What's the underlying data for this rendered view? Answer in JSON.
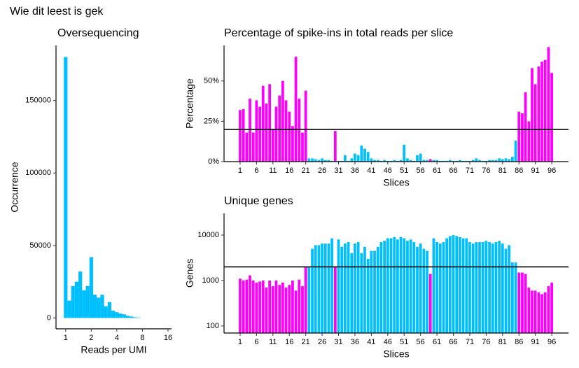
{
  "title": "Wie dit leest is gek",
  "chart_data": [
    {
      "type": "histogram",
      "title": "Oversequencing",
      "x_label": "Reads per UMI",
      "y_label": "Occurrence",
      "color": "#00bfff",
      "bins": [
        0.952,
        1.051,
        1.161,
        1.281,
        1.415,
        1.562,
        1.725,
        1.904,
        2.102,
        2.321,
        2.563,
        2.83,
        3.124,
        3.449,
        3.808,
        4.205,
        4.643,
        5.126,
        5.66,
        6.249,
        6.899,
        7.618
      ],
      "values": [
        180000,
        12000,
        22000,
        25000,
        32000,
        19000,
        22000,
        42000,
        16000,
        14000,
        16000,
        8000,
        11000,
        5000,
        4000,
        3000,
        2500,
        1500,
        1000,
        500,
        300
      ],
      "xlim": [
        0.77,
        17.6
      ],
      "x_log": true,
      "xticks": [
        1,
        2,
        4,
        8,
        16
      ],
      "ylim": [
        -7500,
        188000
      ],
      "yticks": [
        0,
        50000,
        100000,
        150000
      ]
    },
    {
      "type": "bar",
      "title": "Percentage of spike-ins in total reads per slice",
      "x_label": "Slices",
      "y_label": "Percentage",
      "x": [
        1,
        2,
        3,
        4,
        5,
        6,
        7,
        8,
        9,
        10,
        11,
        12,
        13,
        14,
        15,
        16,
        17,
        18,
        19,
        20,
        21,
        22,
        23,
        24,
        25,
        26,
        27,
        28,
        29,
        30,
        31,
        32,
        33,
        34,
        35,
        36,
        37,
        38,
        39,
        40,
        41,
        42,
        43,
        44,
        45,
        46,
        47,
        48,
        49,
        50,
        51,
        52,
        53,
        54,
        55,
        56,
        57,
        58,
        59,
        60,
        61,
        62,
        63,
        64,
        65,
        66,
        67,
        68,
        69,
        70,
        71,
        72,
        73,
        74,
        75,
        76,
        77,
        78,
        79,
        80,
        81,
        82,
        83,
        84,
        85,
        86,
        87,
        88,
        89,
        90,
        91,
        92,
        93,
        94,
        95,
        96
      ],
      "values": [
        32,
        32.5,
        18,
        39,
        18,
        38,
        34,
        47,
        36,
        48,
        20,
        34,
        41,
        50,
        38,
        31,
        22,
        65,
        39,
        18,
        44,
        2,
        2,
        1.5,
        1,
        2,
        1,
        1,
        0.5,
        19,
        0.5,
        0.5,
        4,
        0.5,
        2,
        5,
        4,
        10,
        8,
        6,
        2,
        1,
        1,
        0.5,
        1,
        0.5,
        0.5,
        1,
        0.5,
        1,
        10.5,
        2,
        1,
        0.5,
        4,
        5,
        1,
        1,
        1.5,
        1,
        1,
        0.5,
        0.5,
        0.5,
        1,
        0.5,
        0.5,
        1,
        0.5,
        0.5,
        0.5,
        1,
        2,
        1,
        0.5,
        0.5,
        1,
        1,
        1,
        2,
        1.5,
        2,
        1.5,
        3,
        13,
        31,
        30,
        43,
        25,
        58,
        48,
        59,
        62,
        63,
        71,
        55
      ],
      "colors": [
        "#ff00ff",
        "#ff00ff",
        "#ff00ff",
        "#ff00ff",
        "#ff00ff",
        "#ff00ff",
        "#ff00ff",
        "#ff00ff",
        "#ff00ff",
        "#ff00ff",
        "#ff00ff",
        "#ff00ff",
        "#ff00ff",
        "#ff00ff",
        "#ff00ff",
        "#ff00ff",
        "#ff00ff",
        "#ff00ff",
        "#ff00ff",
        "#ff00ff",
        "#ff00ff",
        "#00bfff",
        "#00bfff",
        "#00bfff",
        "#00bfff",
        "#00bfff",
        "#00bfff",
        "#00bfff",
        "#00bfff",
        "#ff00ff",
        "#00bfff",
        "#00bfff",
        "#00bfff",
        "#00bfff",
        "#00bfff",
        "#00bfff",
        "#00bfff",
        "#00bfff",
        "#00bfff",
        "#00bfff",
        "#00bfff",
        "#00bfff",
        "#00bfff",
        "#00bfff",
        "#00bfff",
        "#00bfff",
        "#00bfff",
        "#00bfff",
        "#00bfff",
        "#00bfff",
        "#00bfff",
        "#00bfff",
        "#00bfff",
        "#00bfff",
        "#00bfff",
        "#00bfff",
        "#00bfff",
        "#00bfff",
        "#ff00ff",
        "#00bfff",
        "#00bfff",
        "#00bfff",
        "#00bfff",
        "#00bfff",
        "#00bfff",
        "#00bfff",
        "#00bfff",
        "#00bfff",
        "#00bfff",
        "#00bfff",
        "#00bfff",
        "#00bfff",
        "#00bfff",
        "#00bfff",
        "#00bfff",
        "#00bfff",
        "#00bfff",
        "#00bfff",
        "#00bfff",
        "#00bfff",
        "#00bfff",
        "#00bfff",
        "#00bfff",
        "#00bfff",
        "#00bfff",
        "#ff00ff",
        "#ff00ff",
        "#ff00ff",
        "#ff00ff",
        "#ff00ff",
        "#ff00ff",
        "#ff00ff",
        "#ff00ff",
        "#ff00ff",
        "#ff00ff",
        "#ff00ff"
      ],
      "xlim": [
        -3.9,
        101.1
      ],
      "xticks": [
        1,
        6,
        11,
        16,
        21,
        26,
        31,
        36,
        41,
        46,
        51,
        56,
        61,
        66,
        71,
        76,
        81,
        86,
        91,
        96
      ],
      "ylim": [
        0,
        72
      ],
      "yticks": [
        {
          "value": 0,
          "label": "0%"
        },
        {
          "value": 25,
          "label": "25%"
        },
        {
          "value": 50,
          "label": "50%"
        }
      ],
      "hline": 20
    },
    {
      "type": "bar",
      "title": "Unique genes",
      "x_label": "Slices",
      "y_label": "Genes",
      "x": [
        1,
        2,
        3,
        4,
        5,
        6,
        7,
        8,
        9,
        10,
        11,
        12,
        13,
        14,
        15,
        16,
        17,
        18,
        19,
        20,
        21,
        22,
        23,
        24,
        25,
        26,
        27,
        28,
        29,
        30,
        31,
        32,
        33,
        34,
        35,
        36,
        37,
        38,
        39,
        40,
        41,
        42,
        43,
        44,
        45,
        46,
        47,
        48,
        49,
        50,
        51,
        52,
        53,
        54,
        55,
        56,
        57,
        58,
        59,
        60,
        61,
        62,
        63,
        64,
        65,
        66,
        67,
        68,
        69,
        70,
        71,
        72,
        73,
        74,
        75,
        76,
        77,
        78,
        79,
        80,
        81,
        82,
        83,
        84,
        85,
        86,
        87,
        88,
        89,
        90,
        91,
        92,
        93,
        94,
        95,
        96
      ],
      "values": [
        1100,
        1000,
        1050,
        1300,
        1000,
        900,
        950,
        1000,
        700,
        1000,
        750,
        1000,
        800,
        900,
        700,
        800,
        1000,
        600,
        1050,
        750,
        2000,
        2000,
        5000,
        6000,
        6000,
        6500,
        6500,
        6500,
        8500,
        2000,
        8000,
        5500,
        6500,
        7000,
        4000,
        6500,
        7000,
        4000,
        5500,
        3000,
        4500,
        4500,
        5500,
        7000,
        7500,
        8500,
        8500,
        9000,
        8000,
        9000,
        8500,
        7500,
        8000,
        7000,
        5500,
        6500,
        5000,
        4500,
        1400,
        8500,
        7000,
        6500,
        7000,
        8500,
        9500,
        10000,
        9500,
        9000,
        8500,
        8500,
        7000,
        6500,
        7000,
        7000,
        7000,
        7500,
        7000,
        6500,
        7000,
        7500,
        6500,
        5000,
        6000,
        2500,
        2500,
        1500,
        1500,
        1400,
        700,
        600,
        600,
        550,
        500,
        550,
        750,
        900
      ],
      "colors": [
        "#ff00ff",
        "#ff00ff",
        "#ff00ff",
        "#ff00ff",
        "#ff00ff",
        "#ff00ff",
        "#ff00ff",
        "#ff00ff",
        "#ff00ff",
        "#ff00ff",
        "#ff00ff",
        "#ff00ff",
        "#ff00ff",
        "#ff00ff",
        "#ff00ff",
        "#ff00ff",
        "#ff00ff",
        "#ff00ff",
        "#ff00ff",
        "#ff00ff",
        "#ff00ff",
        "#00bfff",
        "#00bfff",
        "#00bfff",
        "#00bfff",
        "#00bfff",
        "#00bfff",
        "#00bfff",
        "#00bfff",
        "#ff00ff",
        "#00bfff",
        "#00bfff",
        "#00bfff",
        "#00bfff",
        "#00bfff",
        "#00bfff",
        "#00bfff",
        "#00bfff",
        "#00bfff",
        "#00bfff",
        "#00bfff",
        "#00bfff",
        "#00bfff",
        "#00bfff",
        "#00bfff",
        "#00bfff",
        "#00bfff",
        "#00bfff",
        "#00bfff",
        "#00bfff",
        "#00bfff",
        "#00bfff",
        "#00bfff",
        "#00bfff",
        "#00bfff",
        "#00bfff",
        "#00bfff",
        "#00bfff",
        "#ff00ff",
        "#00bfff",
        "#00bfff",
        "#00bfff",
        "#00bfff",
        "#00bfff",
        "#00bfff",
        "#00bfff",
        "#00bfff",
        "#00bfff",
        "#00bfff",
        "#00bfff",
        "#00bfff",
        "#00bfff",
        "#00bfff",
        "#00bfff",
        "#00bfff",
        "#00bfff",
        "#00bfff",
        "#00bfff",
        "#00bfff",
        "#00bfff",
        "#00bfff",
        "#00bfff",
        "#00bfff",
        "#00bfff",
        "#00bfff",
        "#ff00ff",
        "#ff00ff",
        "#ff00ff",
        "#ff00ff",
        "#ff00ff",
        "#ff00ff",
        "#ff00ff",
        "#ff00ff",
        "#ff00ff",
        "#ff00ff",
        "#ff00ff"
      ],
      "xlim": [
        -3.9,
        101.1
      ],
      "xticks": [
        1,
        6,
        11,
        16,
        21,
        26,
        31,
        36,
        41,
        46,
        51,
        56,
        61,
        66,
        71,
        76,
        81,
        86,
        91,
        96
      ],
      "ylim": [
        70,
        30000
      ],
      "y_log": true,
      "yticks": [
        100,
        1000,
        10000
      ],
      "hline": 2000
    }
  ]
}
